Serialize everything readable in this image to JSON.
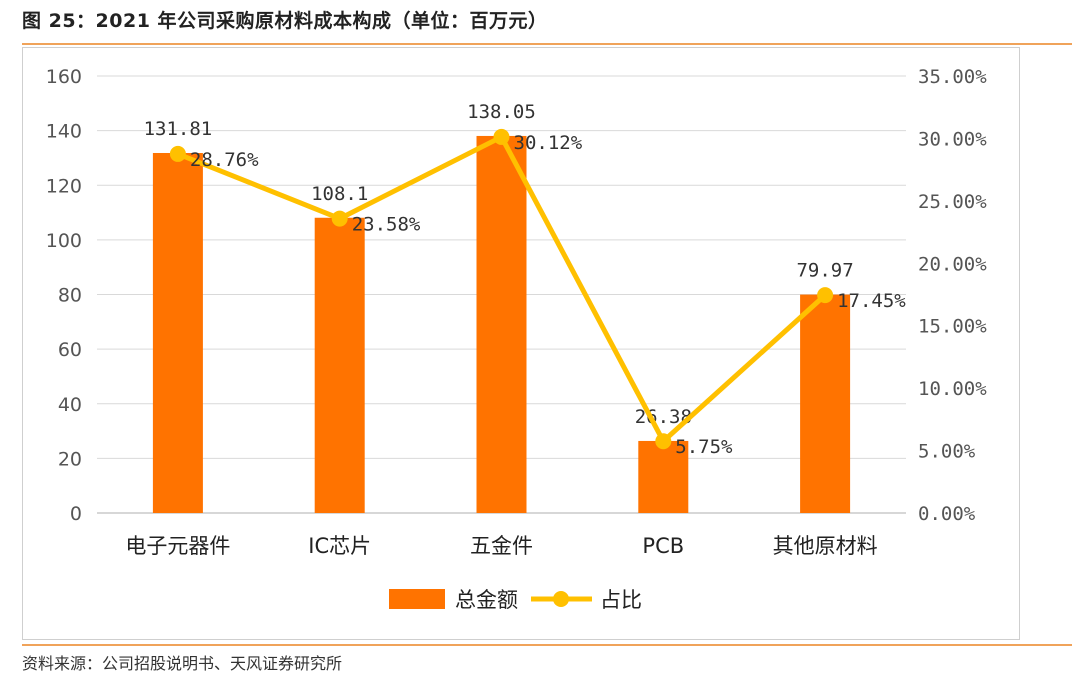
{
  "header": {
    "title": "图 25：2021 年公司采购原材料成本构成（单位：百万元）"
  },
  "footer": {
    "source": "资料来源：公司招股说明书、天风证券研究所"
  },
  "colors": {
    "bar": "#ff7300",
    "line": "#ffc000",
    "grid": "#d9d9d9",
    "rule": "#f0a35a"
  },
  "chart_data": {
    "type": "bar+line",
    "title": "2021 年公司采购原材料成本构成（单位：百万元）",
    "categories": [
      "电子元器件",
      "IC芯片",
      "五金件",
      "PCB",
      "其他原材料"
    ],
    "series": [
      {
        "name": "总金额",
        "type": "bar",
        "axis": "left",
        "values": [
          131.81,
          108.1,
          138.05,
          26.38,
          79.97
        ],
        "labels": [
          "131.81",
          "108.1",
          "138.05",
          "26.38",
          "79.97"
        ]
      },
      {
        "name": "占比",
        "type": "line",
        "axis": "right",
        "values": [
          28.76,
          23.58,
          30.12,
          5.75,
          17.45
        ],
        "labels": [
          "28.76%",
          "23.58%",
          "30.12%",
          "5.75%",
          "17.45%"
        ]
      }
    ],
    "y_left": {
      "min": 0,
      "max": 160,
      "step": 20,
      "ticks": [
        "0",
        "20",
        "40",
        "60",
        "80",
        "100",
        "120",
        "140",
        "160"
      ]
    },
    "y_right": {
      "min": 0,
      "max": 35,
      "step": 5,
      "ticks": [
        "0.00%",
        "5.00%",
        "10.00%",
        "15.00%",
        "20.00%",
        "25.00%",
        "30.00%",
        "35.00%"
      ]
    },
    "legend": {
      "position": "bottom",
      "entries": [
        "总金额",
        "占比"
      ]
    },
    "grid": true
  }
}
